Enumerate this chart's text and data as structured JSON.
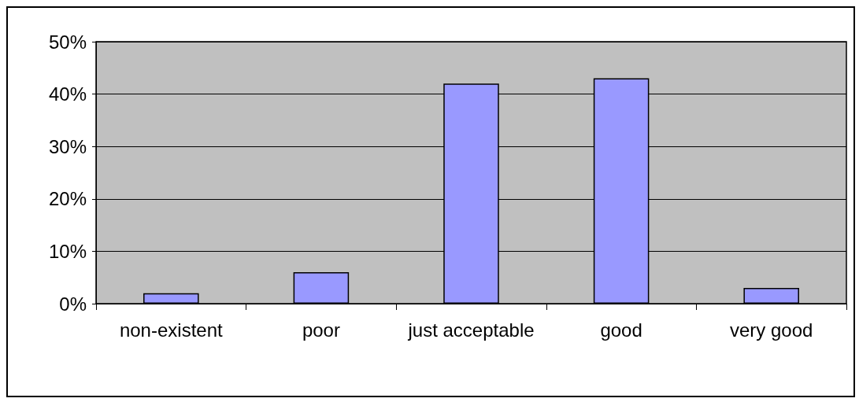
{
  "chart_data": {
    "type": "bar",
    "categories": [
      "non-existent",
      "poor",
      "just acceptable",
      "good",
      "very good"
    ],
    "values": [
      2,
      6,
      42,
      43,
      3
    ],
    "color": "#9999ff",
    "ylim": [
      0,
      50
    ],
    "yticks": [
      {
        "value": 0,
        "label": "0%"
      },
      {
        "value": 10,
        "label": "10%"
      },
      {
        "value": 20,
        "label": "20%"
      },
      {
        "value": 30,
        "label": "30%"
      },
      {
        "value": 40,
        "label": "40%"
      },
      {
        "value": 50,
        "label": "50%"
      }
    ],
    "grid": "y"
  }
}
